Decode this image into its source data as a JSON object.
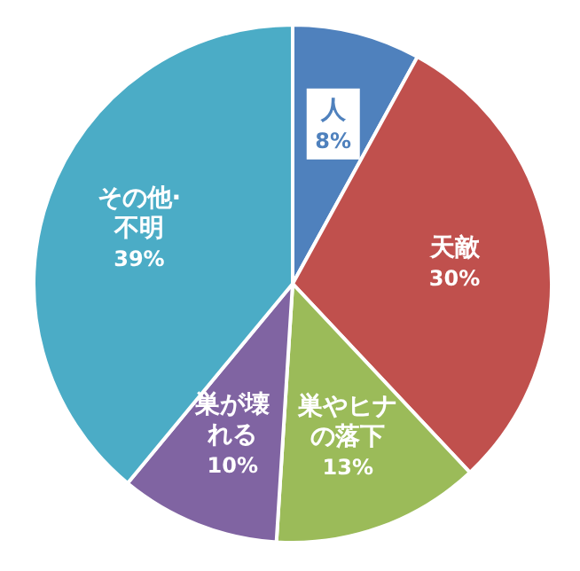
{
  "chart_data": {
    "type": "pie",
    "categories": [
      "人",
      "天敵",
      "巣やヒナの落下",
      "巣が壊れる",
      "その他·不明"
    ],
    "values": [
      8,
      30,
      13,
      10,
      39
    ],
    "colors": [
      "#4f81bd",
      "#c0504d",
      "#9bbb59",
      "#8064a2",
      "#4bacc6"
    ],
    "value_labels": [
      "8%",
      "30%",
      "13%",
      "10%",
      "39%"
    ]
  }
}
